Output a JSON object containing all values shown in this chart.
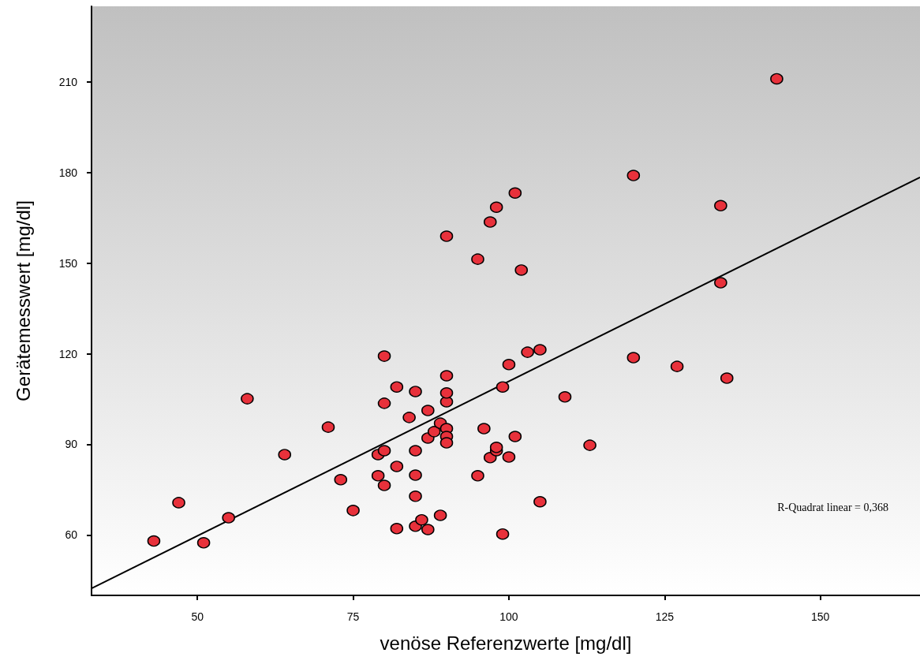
{
  "chart_data": {
    "type": "scatter",
    "xlabel": "venöse Referenzwerte [mg/dl]",
    "ylabel": "Gerätemesswert [mg/dl]",
    "annotations": [
      "R-Quadrat linear = 0,368"
    ],
    "x": [
      43,
      47,
      51,
      55,
      58,
      64,
      71,
      73,
      75,
      79,
      79,
      80,
      80,
      80,
      80,
      82,
      82,
      82,
      84,
      85,
      85,
      85,
      85,
      85,
      86,
      87,
      87,
      87,
      88,
      89,
      89,
      90,
      90,
      90,
      90,
      90,
      90,
      90,
      95,
      95,
      96,
      97,
      97,
      98,
      98,
      98,
      99,
      99,
      100,
      100,
      101,
      101,
      102,
      103,
      105,
      105,
      109,
      113,
      120,
      120,
      127,
      134,
      134,
      135,
      143
    ],
    "series": [
      {
        "color": "#e8313b",
        "values": [
          58,
          70.7,
          57.4,
          65.7,
          105.1,
          86.6,
          95.7,
          78.3,
          68.1,
          79.6,
          86.6,
          87.9,
          76.4,
          103.6,
          119.2,
          82.7,
          109,
          62.1,
          98.9,
          62.9,
          72.8,
          79.8,
          87.9,
          107.5,
          65,
          92.1,
          101.2,
          61.8,
          94.2,
          97,
          66.5,
          95.2,
          92.6,
          90.5,
          104.1,
          107,
          112.7,
          158.9,
          79.6,
          151.3,
          95.2,
          85.6,
          163.6,
          87.9,
          89,
          168.5,
          60.3,
          109,
          116.4,
          85.8,
          92.6,
          173.2,
          147.7,
          120.5,
          121.3,
          71,
          105.7,
          89.7,
          179,
          118.7,
          115.8,
          169,
          143.5,
          111.9,
          211
        ]
      },
      {
        "type": "line",
        "color": "#000000",
        "x": [
          33,
          166
        ],
        "values": [
          42.3,
          178.4
        ],
        "marker": "none"
      }
    ],
    "xlim": [
      33,
      166
    ],
    "ylim": [
      40,
      235
    ],
    "xticks": [
      50,
      75,
      100,
      125,
      150
    ],
    "yticks": [
      60,
      90,
      120,
      150,
      180,
      210
    ],
    "grid": false,
    "marker": "circle",
    "line_style": "solid"
  }
}
